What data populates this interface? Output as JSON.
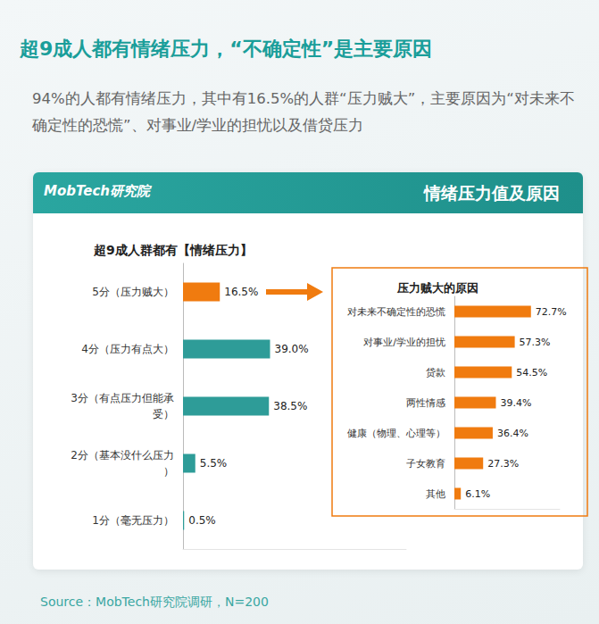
{
  "page": {
    "title": "超9成人都有情绪压力，“不确定性”是主要原因",
    "subtitle": "94%的人都有情绪压力，其中有16.5%的人群“压力贼大”，主要原因为“对未来不确定性的恐慌”、对事业/学业的担忧以及借贷压力",
    "brand": "MobTech研究院",
    "panel_title": "情绪压力值及原因",
    "source": "Source：MobTech研究院调研，N=200"
  },
  "chart_data": [
    {
      "type": "bar",
      "title": "超9成人群都有【情绪压力】",
      "orientation": "horizontal",
      "categories": [
        "5分（压力贼大）",
        "4分（压力有点大）",
        "3分（有点压力但能承受）",
        "2分（基本没什么压力）",
        "1分（毫无压力）"
      ],
      "values": [
        16.5,
        39.0,
        38.5,
        5.5,
        0.5
      ],
      "value_labels": [
        "16.5%",
        "39.0%",
        "38.5%",
        "5.5%",
        "0.5%"
      ],
      "colors": [
        "#f07b0f",
        "#2e9c98",
        "#2e9c98",
        "#2e9c98",
        "#2e9c98"
      ],
      "xlim": [
        0,
        100
      ],
      "data_labels": true,
      "tick_labels": "y",
      "grid": false
    },
    {
      "type": "bar",
      "title": "压力贼大的原因",
      "orientation": "horizontal",
      "categories": [
        "对未来不确定性的恐慌",
        "对事业/学业的担忧",
        "贷款",
        "两性情感",
        "健康（物理、心理等）",
        "子女教育",
        "其他"
      ],
      "values": [
        72.7,
        57.3,
        54.5,
        39.4,
        36.4,
        27.3,
        6.1
      ],
      "value_labels": [
        "72.7%",
        "57.3%",
        "54.5%",
        "39.4%",
        "36.4%",
        "27.3%",
        "6.1%"
      ],
      "color": "#f07b0f",
      "xlim": [
        0,
        100
      ],
      "data_labels": true,
      "tick_labels": "y",
      "grid": false
    }
  ]
}
